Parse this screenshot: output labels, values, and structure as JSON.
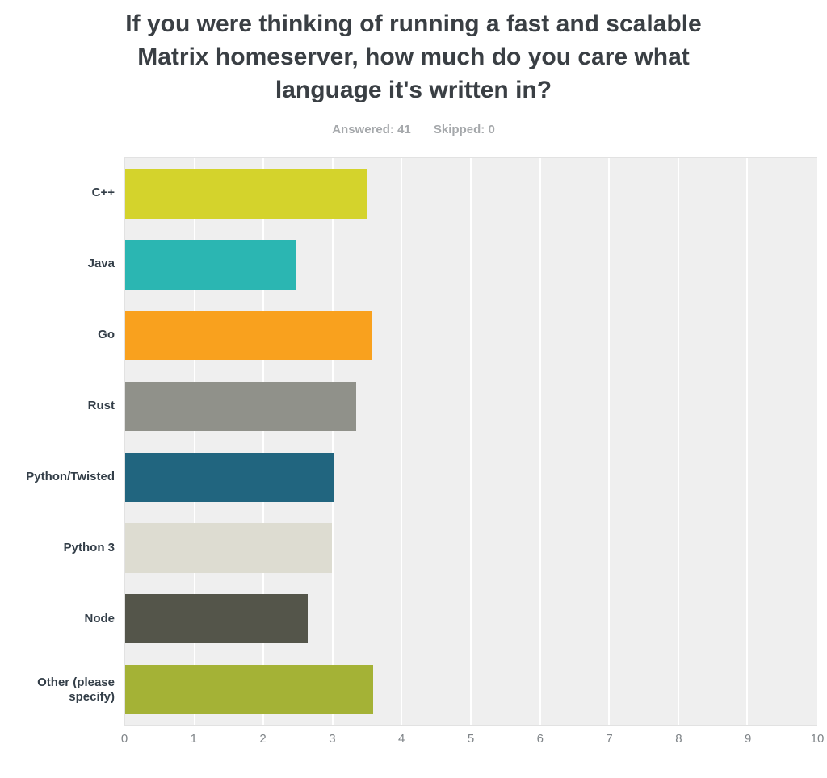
{
  "title": "If you were thinking of running a fast and scalable Matrix homeserver, how much do you care what language it's written in?",
  "stats": {
    "answered_label": "Answered:",
    "answered_value": "41",
    "skipped_label": "Skipped:",
    "skipped_value": "0"
  },
  "chart_data": {
    "type": "bar",
    "orientation": "horizontal",
    "title": "If you were thinking of running a fast and scalable Matrix homeserver, how much do you care what language it's written in?",
    "categories": [
      "C++",
      "Java",
      "Go",
      "Rust",
      "Python/Twisted",
      "Python 3",
      "Node",
      "Other (please specify)"
    ],
    "values": [
      3.51,
      2.46,
      3.57,
      3.34,
      3.03,
      2.99,
      2.64,
      3.59
    ],
    "bar_colors": [
      "#d4d32c",
      "#2bb6b2",
      "#f9a11e",
      "#90918a",
      "#21657f",
      "#dddcd1",
      "#54554a",
      "#a4b236"
    ],
    "xlabel": "",
    "ylabel": "",
    "xlim": [
      0,
      10
    ],
    "x_ticks": [
      0,
      1,
      2,
      3,
      4,
      5,
      6,
      7,
      8,
      9,
      10
    ],
    "grid": true,
    "plot_background": "#efefef",
    "grid_color": "#ffffff",
    "legend": false
  }
}
